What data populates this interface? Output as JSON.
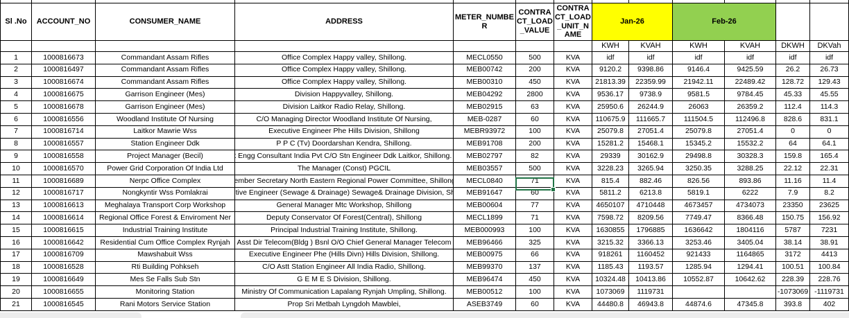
{
  "sheet": {
    "header": {
      "sl_no": "Sl .No",
      "account_no": "ACCOUNT_NO",
      "consumer_name": "CONSUMER_NAME",
      "address": "ADDRESS",
      "meter_number": "METER_NUMBER",
      "contract_load_value": "CONTRACT_LOAD_VALUE",
      "contract_load_unit_name": "CONTRACT_LOAD_UNIT_NAME",
      "jan_group": "Jan-26",
      "feb_group": "Feb-26",
      "kwh": "KWH",
      "kvah": "KVAH",
      "dkwh": "DKWH",
      "dkvah": "DKVah"
    },
    "colors": {
      "jan_header_bg": "#FFFF00",
      "feb_header_bg": "#92D050",
      "selection_border": "#217346",
      "grid_border": "#000000"
    },
    "selection": {
      "row": 7,
      "column": "load"
    },
    "rows": [
      {
        "sl": "1",
        "account": "1000816673",
        "consumer": "Commandant Assam Rifles",
        "address": "Office Complex Happy valley, Shillong.",
        "meter": "MECL0550",
        "load": "500",
        "unit": "KVA",
        "jan_kwh": "idf",
        "jan_kvah": "idf",
        "feb_kwh": "idf",
        "feb_kvah": "idf",
        "dkwh": "idf",
        "dkvah": "idf"
      },
      {
        "sl": "2",
        "account": "1000816497",
        "consumer": "Commandant Assam Rifles",
        "address": "Office Complex Happy valley, Shillong.",
        "meter": "MEB00742",
        "load": "200",
        "unit": "KVA",
        "jan_kwh": "9120.2",
        "jan_kvah": "9398.86",
        "feb_kwh": "9146.4",
        "feb_kvah": "9425.59",
        "dkwh": "26.2",
        "dkvah": "26.73"
      },
      {
        "sl": "3",
        "account": "1000816674",
        "consumer": "Commandant Assam Rifles",
        "address": "Office Complex Happy valley, Shillong.",
        "meter": "MEB00310",
        "load": "450",
        "unit": "KVA",
        "jan_kwh": "21813.39",
        "jan_kvah": "22359.99",
        "feb_kwh": "21942.11",
        "feb_kvah": "22489.42",
        "dkwh": "128.72",
        "dkvah": "129.43"
      },
      {
        "sl": "4",
        "account": "1000816675",
        "consumer": "Garrison Engineer (Mes)",
        "address": "Division Happyvalley, Shillong.",
        "meter": "MEB04292",
        "load": "2800",
        "unit": "KVA",
        "jan_kwh": "9536.17",
        "jan_kvah": "9738.9",
        "feb_kwh": "9581.5",
        "feb_kvah": "9784.45",
        "dkwh": "45.33",
        "dkvah": "45.55"
      },
      {
        "sl": "5",
        "account": "1000816678",
        "consumer": "Garrison Engineer (Mes)",
        "address": "Division Laitkor Radio Relay, Shillong.",
        "meter": "MEB02915",
        "load": "63",
        "unit": "KVA",
        "jan_kwh": "25950.6",
        "jan_kvah": "26244.9",
        "feb_kwh": "26063",
        "feb_kvah": "26359.2",
        "dkwh": "112.4",
        "dkvah": "114.3"
      },
      {
        "sl": "6",
        "account": "1000816556",
        "consumer": "Woodland Institute Of Nursing",
        "address": "C/O Managing Director Woodland Institute Of Nursing,",
        "meter": "MEB-0287",
        "load": "60",
        "unit": "KVA",
        "jan_kwh": "110675.9",
        "jan_kvah": "111665.7",
        "feb_kwh": "111504.5",
        "feb_kvah": "112496.8",
        "dkwh": "828.6",
        "dkvah": "831.1"
      },
      {
        "sl": "7",
        "account": "1000816714",
        "consumer": "Laitkor Mawrie Wss",
        "address": "Executive Engineer Phe Hills Division, Shillong",
        "meter": "MEBR93972",
        "load": "100",
        "unit": "KVA",
        "jan_kwh": "25079.8",
        "jan_kvah": "27051.4",
        "feb_kwh": "25079.8",
        "feb_kvah": "27051.4",
        "dkwh": "0",
        "dkvah": "0"
      },
      {
        "sl": "8",
        "account": "1000816557",
        "consumer": "Station Engineer Ddk",
        "address": "P P C (Tv) Doordarshan Kendra, Shillong.",
        "meter": "MEB91708",
        "load": "200",
        "unit": "KVA",
        "jan_kwh": "15281.2",
        "jan_kvah": "15468.1",
        "feb_kwh": "15345.2",
        "feb_kvah": "15532.2",
        "dkwh": "64",
        "dkvah": "64.1"
      },
      {
        "sl": "9",
        "account": "1000816558",
        "consumer": "Project Manager (Becil)",
        "address": "st Engg Consultant India Pvt C/O Stn Engineer Ddk Laitkor, Shillong. #",
        "meter": "MEB02797",
        "load": "82",
        "unit": "KVA",
        "jan_kwh": "29339",
        "jan_kvah": "30162.9",
        "feb_kwh": "29498.8",
        "feb_kvah": "30328.3",
        "dkwh": "159.8",
        "dkvah": "165.4"
      },
      {
        "sl": "10",
        "account": "1000816570",
        "consumer": "Power Grid Corporation Of India Ltd",
        "address": "The Manager (Const) PGCIL",
        "meter": "MEB03557",
        "load": "500",
        "unit": "KVA",
        "jan_kwh": "3228.23",
        "jan_kvah": "3265.94",
        "feb_kwh": "3250.35",
        "feb_kvah": "3288.25",
        "dkwh": "22.12",
        "dkvah": "22.31"
      },
      {
        "sl": "11",
        "account": "1000816689",
        "consumer": "Nerpc Office Complex",
        "address": "lember Secretary North Eastern Regional Power Committee, Shillong",
        "meter": "MECL0840",
        "load": "71",
        "unit": "KVA",
        "jan_kwh": "815.4",
        "jan_kvah": "882.46",
        "feb_kwh": "826.56",
        "feb_kvah": "893.86",
        "dkwh": "11.16",
        "dkvah": "11.4"
      },
      {
        "sl": "12",
        "account": "1000816717",
        "consumer": "Nongkyntir Wss Pomlakrai",
        "address": "utive Engineer (Sewage & Drainage) Sewage& Drainage Division, Shi",
        "meter": "MEB91647",
        "load": "60",
        "unit": "KVA",
        "jan_kwh": "5811.2",
        "jan_kvah": "6213.8",
        "feb_kwh": "5819.1",
        "feb_kvah": "6222",
        "dkwh": "7.9",
        "dkvah": "8.2"
      },
      {
        "sl": "13",
        "account": "1000816613",
        "consumer": "Meghalaya Transport Corp Workshop",
        "address": "General Manager Mtc Workshop, Shillong",
        "meter": "MEB00604",
        "load": "77",
        "unit": "KVA",
        "jan_kwh": "4650107",
        "jan_kvah": "4710448",
        "feb_kwh": "4673457",
        "feb_kvah": "4734073",
        "dkwh": "23350",
        "dkvah": "23625"
      },
      {
        "sl": "14",
        "account": "1000816614",
        "consumer": "Regional Office Forest & Enviroment Ner",
        "address": "Deputy Conservator Of Forest(Central), Shillong",
        "meter": "MECL1899",
        "load": "71",
        "unit": "KVA",
        "jan_kwh": "7598.72",
        "jan_kvah": "8209.56",
        "feb_kwh": "7749.47",
        "feb_kvah": "8366.48",
        "dkwh": "150.75",
        "dkvah": "156.92"
      },
      {
        "sl": "15",
        "account": "1000816615",
        "consumer": "Industrial Training Institute",
        "address": "Principal Industrial Training Institute, Shillong.",
        "meter": "MEB000993",
        "load": "100",
        "unit": "KVA",
        "jan_kwh": "1630855",
        "jan_kvah": "1796885",
        "feb_kwh": "1636642",
        "feb_kvah": "1804116",
        "dkwh": "5787",
        "dkvah": "7231"
      },
      {
        "sl": "16",
        "account": "1000816642",
        "consumer": "Residential Cum Office Complex Rynjah",
        "address": "Asst Dir Telecom(Bldg ) Bsnl O/O Chief General Manager Telecom",
        "meter": "MEB96466",
        "load": "325",
        "unit": "KVA",
        "jan_kwh": "3215.32",
        "jan_kvah": "3366.13",
        "feb_kwh": "3253.46",
        "feb_kvah": "3405.04",
        "dkwh": "38.14",
        "dkvah": "38.91"
      },
      {
        "sl": "17",
        "account": "1000816709",
        "consumer": "Mawshabuit  Wss",
        "address": "Executive Engineer Phe (Hills Divn) Hills Division, Shillong.",
        "meter": "MEB00975",
        "load": "66",
        "unit": "KVA",
        "jan_kwh": "918261",
        "jan_kvah": "1160452",
        "feb_kwh": "921433",
        "feb_kvah": "1164865",
        "dkwh": "3172",
        "dkvah": "4413"
      },
      {
        "sl": "18",
        "account": "1000816528",
        "consumer": "Rti Building Pohkseh",
        "address": "C/O Astt Station Engineer All India Radio, Shillong.",
        "meter": "MEB99370",
        "load": "137",
        "unit": "KVA",
        "jan_kwh": "1185.43",
        "jan_kvah": "1193.57",
        "feb_kwh": "1285.94",
        "feb_kvah": "1294.41",
        "dkwh": "100.51",
        "dkvah": "100.84"
      },
      {
        "sl": "19",
        "account": "1000816649",
        "consumer": "Mes Se Falls Sub Stn",
        "address": "G E M E S Division, Shillong.",
        "meter": "MEB96474",
        "load": "450",
        "unit": "KVA",
        "jan_kwh": "10324.48",
        "jan_kvah": "10413.86",
        "feb_kwh": "10552.87",
        "feb_kvah": "10642.62",
        "dkwh": "228.39",
        "dkvah": "228.76"
      },
      {
        "sl": "20",
        "account": "1000816655",
        "consumer": "Monitoring  Station",
        "address": "Ministry Of Communication Lapalang Rynjah Umpling, Shillong.",
        "meter": "MEB00512",
        "load": "100",
        "unit": "KVA",
        "jan_kwh": "1073069",
        "jan_kvah": "1119731",
        "feb_kwh": "",
        "feb_kvah": "",
        "dkwh": "-1073069",
        "dkvah": "-1119731"
      },
      {
        "sl": "21",
        "account": "1000816545",
        "consumer": "Rani Motors Service Station",
        "address": "Prop Sri Metbah Lyngdoh Mawblei,",
        "meter": "ASEB3749",
        "load": "60",
        "unit": "KVA",
        "jan_kwh": "44480.8",
        "jan_kvah": "46943.8",
        "feb_kwh": "44874.6",
        "feb_kvah": "47345.8",
        "dkwh": "393.8",
        "dkvah": "402"
      }
    ]
  }
}
